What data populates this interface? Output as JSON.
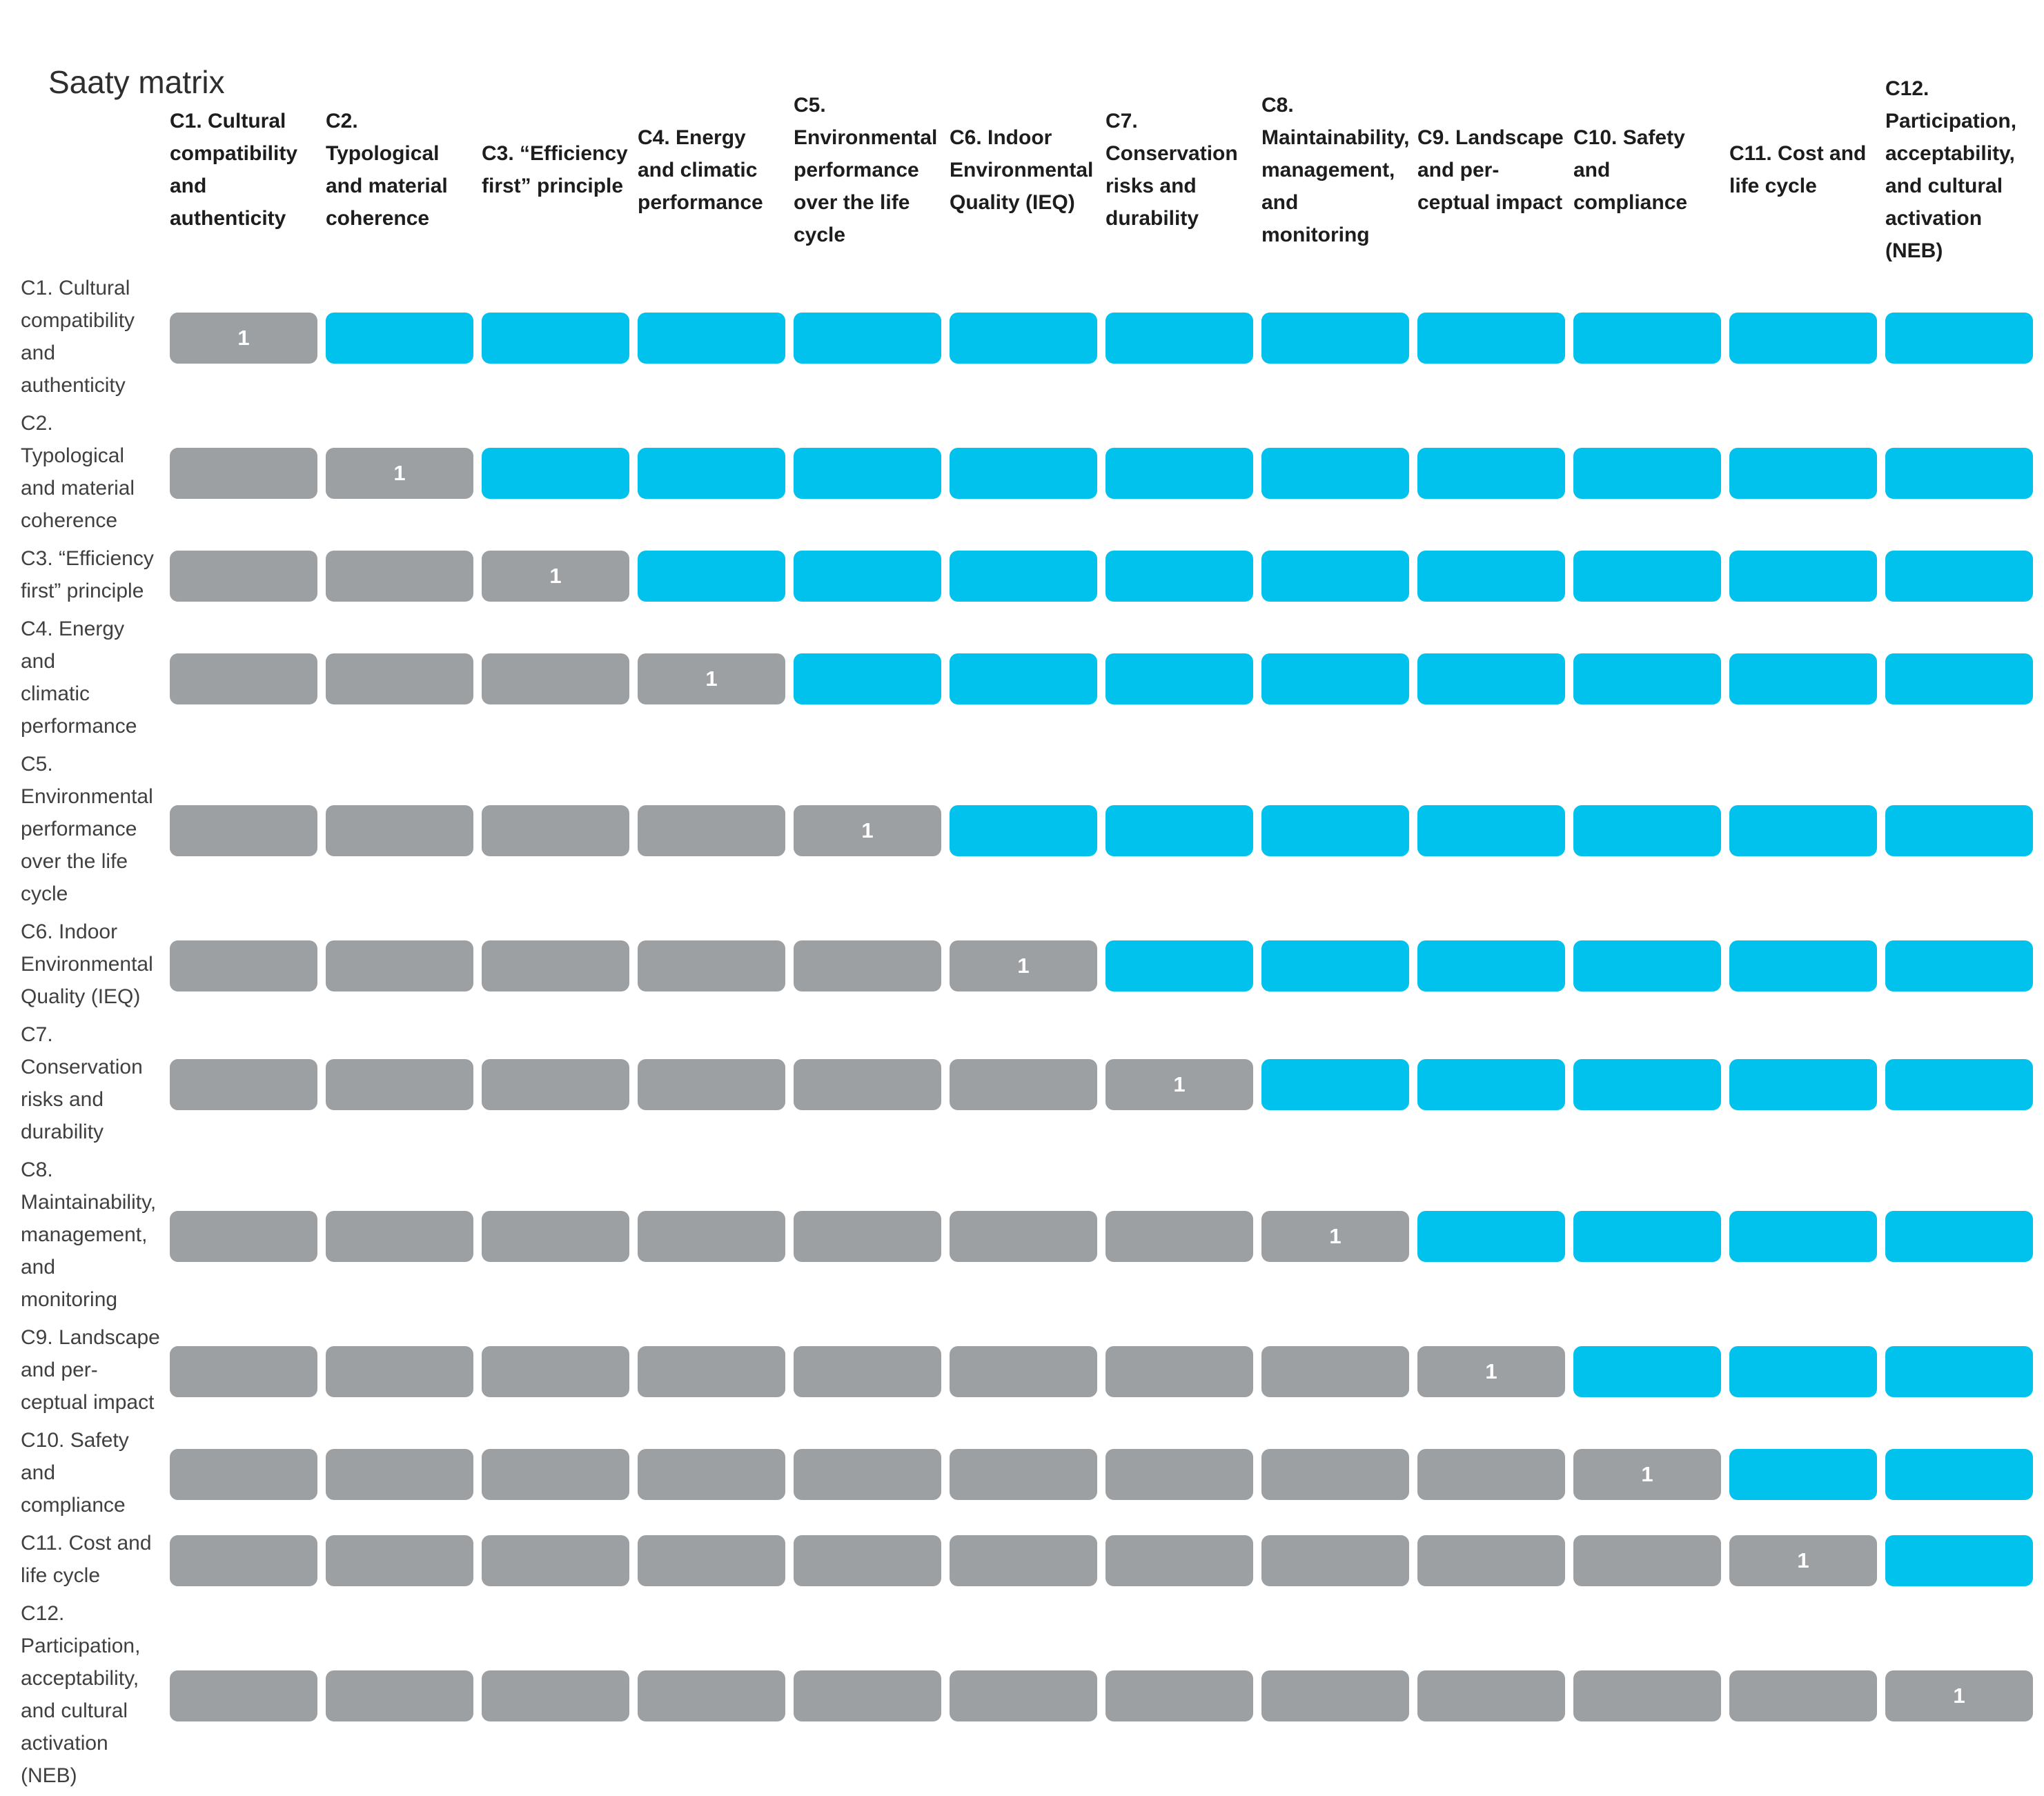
{
  "title": "Saaty matrix",
  "matrix": {
    "diagonal_value": "1",
    "column_headers": [
      "C1. Cultural\ncompatibility\nand\nauthenticity",
      "C2.\nTypological\nand material\ncoherence",
      "C3. “Efficiency\nfirst” principle",
      "C4. Energy\nand climatic\nperformance",
      "C5.\nEnvironmental\nperformance\nover the life\ncycle",
      "C6. Indoor\nEnvironmental\nQuality (IEQ)",
      "C7.\nConservation\nrisks and\ndurability",
      "C8.\nMaintainability,\nmanagement,\nand\nmonitoring",
      "C9. Landscape\nand per-\nceptual impact",
      "C10. Safety\nand\ncompliance",
      "C11. Cost and\nlife cycle",
      "C12.\nParticipation,\nacceptability,\nand cultural\nactivation\n(NEB)"
    ],
    "row_headers": [
      "C1. Cultural\ncompatibility\nand\nauthenticity",
      "C2. Typological\nand material\ncoherence",
      "C3. “Efficiency\nfirst” principle",
      "C4. Energy and\nclimatic\nperformance",
      "C5.\nEnvironmental\nperformance\nover the life\ncycle",
      "C6. Indoor\nEnvironmental\nQuality (IEQ)",
      "C7.\nConservation\nrisks and\ndurability",
      "C8.\nMaintainability,\nmanagement,\nand\nmonitoring",
      "C9. Landscape\nand per-\nceptual impact",
      "C10. Safety\nand\ncompliance",
      "C11. Cost and\nlife cycle",
      "C12.\nParticipation,\nacceptability,\nand cultural\nactivation\n(NEB)"
    ]
  },
  "chart_data": {
    "type": "heatmap",
    "title": "Saaty matrix",
    "categories": [
      "C1. Cultural compatibility and authenticity",
      "C2. Typological and material coherence",
      "C3. “Efficiency first” principle",
      "C4. Energy and climatic performance",
      "C5. Environmental performance over the life cycle",
      "C6. Indoor Environmental Quality (IEQ)",
      "C7. Conservation risks and durability",
      "C8. Maintainability, management, and monitoring",
      "C9. Landscape and perceptual impact",
      "C10. Safety and compliance",
      "C11. Cost and life cycle",
      "C12. Participation, acceptability, and cultural activation (NEB)"
    ],
    "values": [
      [
        1,
        null,
        null,
        null,
        null,
        null,
        null,
        null,
        null,
        null,
        null,
        null
      ],
      [
        null,
        1,
        null,
        null,
        null,
        null,
        null,
        null,
        null,
        null,
        null,
        null
      ],
      [
        null,
        null,
        1,
        null,
        null,
        null,
        null,
        null,
        null,
        null,
        null,
        null
      ],
      [
        null,
        null,
        null,
        1,
        null,
        null,
        null,
        null,
        null,
        null,
        null,
        null
      ],
      [
        null,
        null,
        null,
        null,
        1,
        null,
        null,
        null,
        null,
        null,
        null,
        null
      ],
      [
        null,
        null,
        null,
        null,
        null,
        1,
        null,
        null,
        null,
        null,
        null,
        null
      ],
      [
        null,
        null,
        null,
        null,
        null,
        null,
        1,
        null,
        null,
        null,
        null,
        null
      ],
      [
        null,
        null,
        null,
        null,
        null,
        null,
        null,
        1,
        null,
        null,
        null,
        null
      ],
      [
        null,
        null,
        null,
        null,
        null,
        null,
        null,
        null,
        1,
        null,
        null,
        null
      ],
      [
        null,
        null,
        null,
        null,
        null,
        null,
        null,
        null,
        null,
        1,
        null,
        null
      ],
      [
        null,
        null,
        null,
        null,
        null,
        null,
        null,
        null,
        null,
        null,
        1,
        null
      ],
      [
        null,
        null,
        null,
        null,
        null,
        null,
        null,
        null,
        null,
        null,
        null,
        1
      ]
    ],
    "colors": {
      "diagonal_cell": "#9ca0a3",
      "lower_triangle_cell": "#9ca0a3",
      "upper_triangle_cell": "#00c2ec",
      "value_text": "#ffffff"
    },
    "legend": false,
    "grid": false,
    "notes": "Pairwise comparison matrix; only diagonal cells display the value 1; off-diagonal cells are empty colored rounded rectangles."
  }
}
